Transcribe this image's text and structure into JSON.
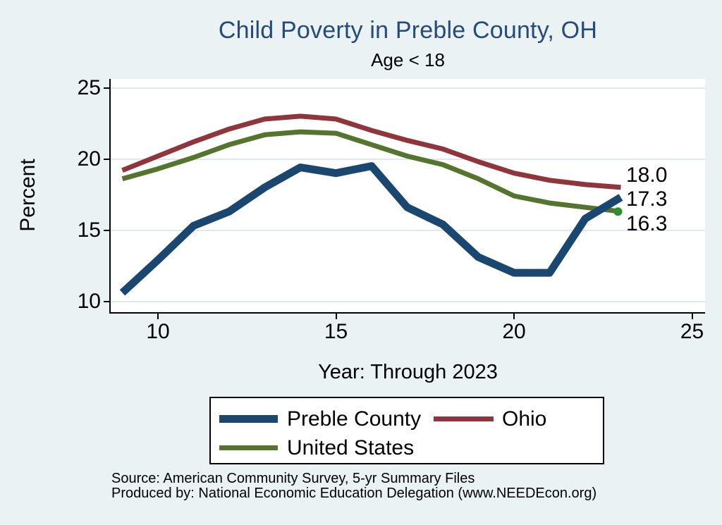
{
  "header": {
    "title": "Child Poverty in Preble County, OH",
    "subtitle": "Age < 18"
  },
  "footer": {
    "source_line": "Source: American Community Survey, 5-yr Summary Files",
    "produced_line": "Produced by: National Economic Education Delegation (www.NEEDEcon.org)"
  },
  "colors": {
    "background": "#eaf2f3",
    "plot_background": "#ffffff",
    "title": "#254a7c",
    "gridline": "#dde9ee",
    "axis": "#000000",
    "preble_blue": "#1a476f",
    "ohio_maroon": "#90353b",
    "us_green": "#55752f",
    "end_marker_green": "#2d8f2d"
  },
  "chart_data": {
    "type": "line",
    "title": "Child Poverty in Preble County, OH",
    "subtitle": "Age < 18",
    "xlabel": "Year: Through 2023",
    "ylabel": "Percent",
    "x": [
      9,
      10,
      11,
      12,
      13,
      14,
      15,
      16,
      17,
      18,
      19,
      20,
      21,
      22,
      23
    ],
    "x_ticks": [
      10,
      15,
      20,
      25
    ],
    "y_ticks": [
      25,
      20,
      15,
      10
    ],
    "xlim": [
      8.7,
      25.4
    ],
    "ylim": [
      9.2,
      25.7
    ],
    "grid": "horizontal",
    "legend_position": "bottom",
    "series": [
      {
        "name": "Preble County",
        "color": "#1a476f",
        "stroke_width": 11,
        "end_label": "17.3",
        "end_marker": false,
        "values": [
          10.6,
          12.9,
          15.3,
          16.3,
          18.0,
          19.4,
          19.0,
          19.5,
          16.6,
          15.4,
          13.1,
          12.0,
          12.0,
          15.8,
          17.3
        ]
      },
      {
        "name": "Ohio",
        "color": "#90353b",
        "stroke_width": 7,
        "end_label": "18.0",
        "end_marker": false,
        "values": [
          19.2,
          20.2,
          21.2,
          22.1,
          22.8,
          23.0,
          22.8,
          22.0,
          21.3,
          20.7,
          19.8,
          19.0,
          18.5,
          18.2,
          18.0
        ]
      },
      {
        "name": "United States",
        "color": "#55752f",
        "stroke_width": 7,
        "end_label": "16.3",
        "end_marker": true,
        "values": [
          18.6,
          19.3,
          20.1,
          21.0,
          21.7,
          21.9,
          21.8,
          21.0,
          20.2,
          19.6,
          18.6,
          17.4,
          16.9,
          16.6,
          16.3
        ]
      }
    ]
  }
}
